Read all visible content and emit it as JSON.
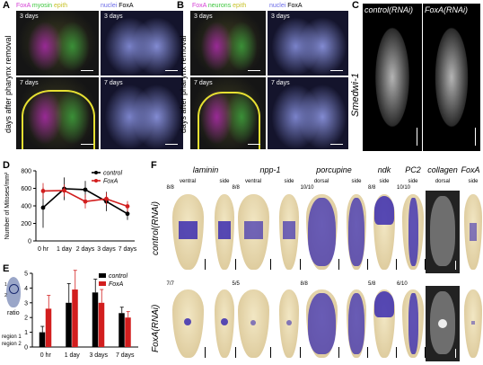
{
  "panel_labels": {
    "a": "A",
    "b": "B",
    "c": "C",
    "d": "D",
    "e": "E",
    "f": "F"
  },
  "panel_a": {
    "left_header": [
      "FoxA",
      " myosin",
      " epith"
    ],
    "right_header": [
      "nuclei",
      " FoxA"
    ],
    "time_top": "3 days",
    "time_bottom": "7 days",
    "side_label": "days after pharynx removal",
    "colors": {
      "magenta": "#d43fd4",
      "green": "#3ec63e",
      "yellow": "#e6e032",
      "blue": "#8080ff"
    }
  },
  "panel_b": {
    "left_header": [
      "FoxA",
      " neurons",
      " epith"
    ],
    "right_header": [
      "nuclei",
      " FoxA"
    ],
    "time_top": "3 days",
    "time_bottom": "7 days",
    "side_label": "days after pharynx removal"
  },
  "panel_c": {
    "col_left": "control(RNAi)",
    "col_right": "FoxA(RNAi)",
    "side_label": "Smedwi-1"
  },
  "panel_d": {
    "chart_data": {
      "type": "line",
      "ylabel": "Number of Mitoses/mm²",
      "x": [
        "0 hr",
        "1 day",
        "2 days",
        "3 days",
        "7 days"
      ],
      "ylim": [
        0,
        800
      ],
      "yticks": [
        0,
        200,
        400,
        600,
        800
      ],
      "legend": [
        "control",
        "FoxA"
      ],
      "series": [
        {
          "name": "control",
          "color": "#000000",
          "values": [
            380,
            595,
            585,
            450,
            310
          ],
          "err": [
            230,
            130,
            100,
            110,
            70
          ]
        },
        {
          "name": "FoxA",
          "color": "#d21e1e",
          "values": [
            570,
            575,
            450,
            480,
            395
          ],
          "err": [
            90,
            70,
            80,
            70,
            60
          ]
        }
      ]
    }
  },
  "panel_e": {
    "inset_label": "ratio",
    "inset_sub": [
      "region 1",
      "region 2"
    ],
    "inset_marks": [
      "1",
      "2"
    ],
    "chart_data": {
      "type": "bar",
      "categories": [
        "0 hr",
        "1 day",
        "3 days",
        "7 days"
      ],
      "ylim": [
        0,
        5
      ],
      "yticks": [
        0,
        1,
        2,
        3,
        4,
        5
      ],
      "legend": [
        "control",
        "FoxA"
      ],
      "series": [
        {
          "name": "control",
          "color": "#000000",
          "values": [
            1.0,
            3.0,
            3.7,
            2.3
          ],
          "err": [
            0.4,
            1.3,
            0.9,
            0.4
          ]
        },
        {
          "name": "FoxA",
          "color": "#d21e1e",
          "values": [
            2.6,
            3.9,
            3.0,
            2.0
          ],
          "err": [
            0.9,
            1.3,
            0.9,
            0.4
          ]
        }
      ]
    }
  },
  "panel_f": {
    "genes": [
      "laminin",
      "npp-1",
      "porcupine",
      "ndk",
      "PC2",
      "collagen",
      "FoxA"
    ],
    "views": [
      "ventral",
      "side",
      "ventral",
      "side",
      "dorsal",
      "side",
      "side",
      "side",
      "dorsal",
      "side"
    ],
    "rows": [
      "control(RNAi)",
      "FoxA(RNAi)"
    ],
    "counts_top": [
      "8/8",
      "8/8",
      "10/10",
      "8/8",
      "10/10"
    ],
    "counts_bottom": [
      "7/7",
      "5/5",
      "8/8",
      "5/8",
      "6/10"
    ]
  }
}
